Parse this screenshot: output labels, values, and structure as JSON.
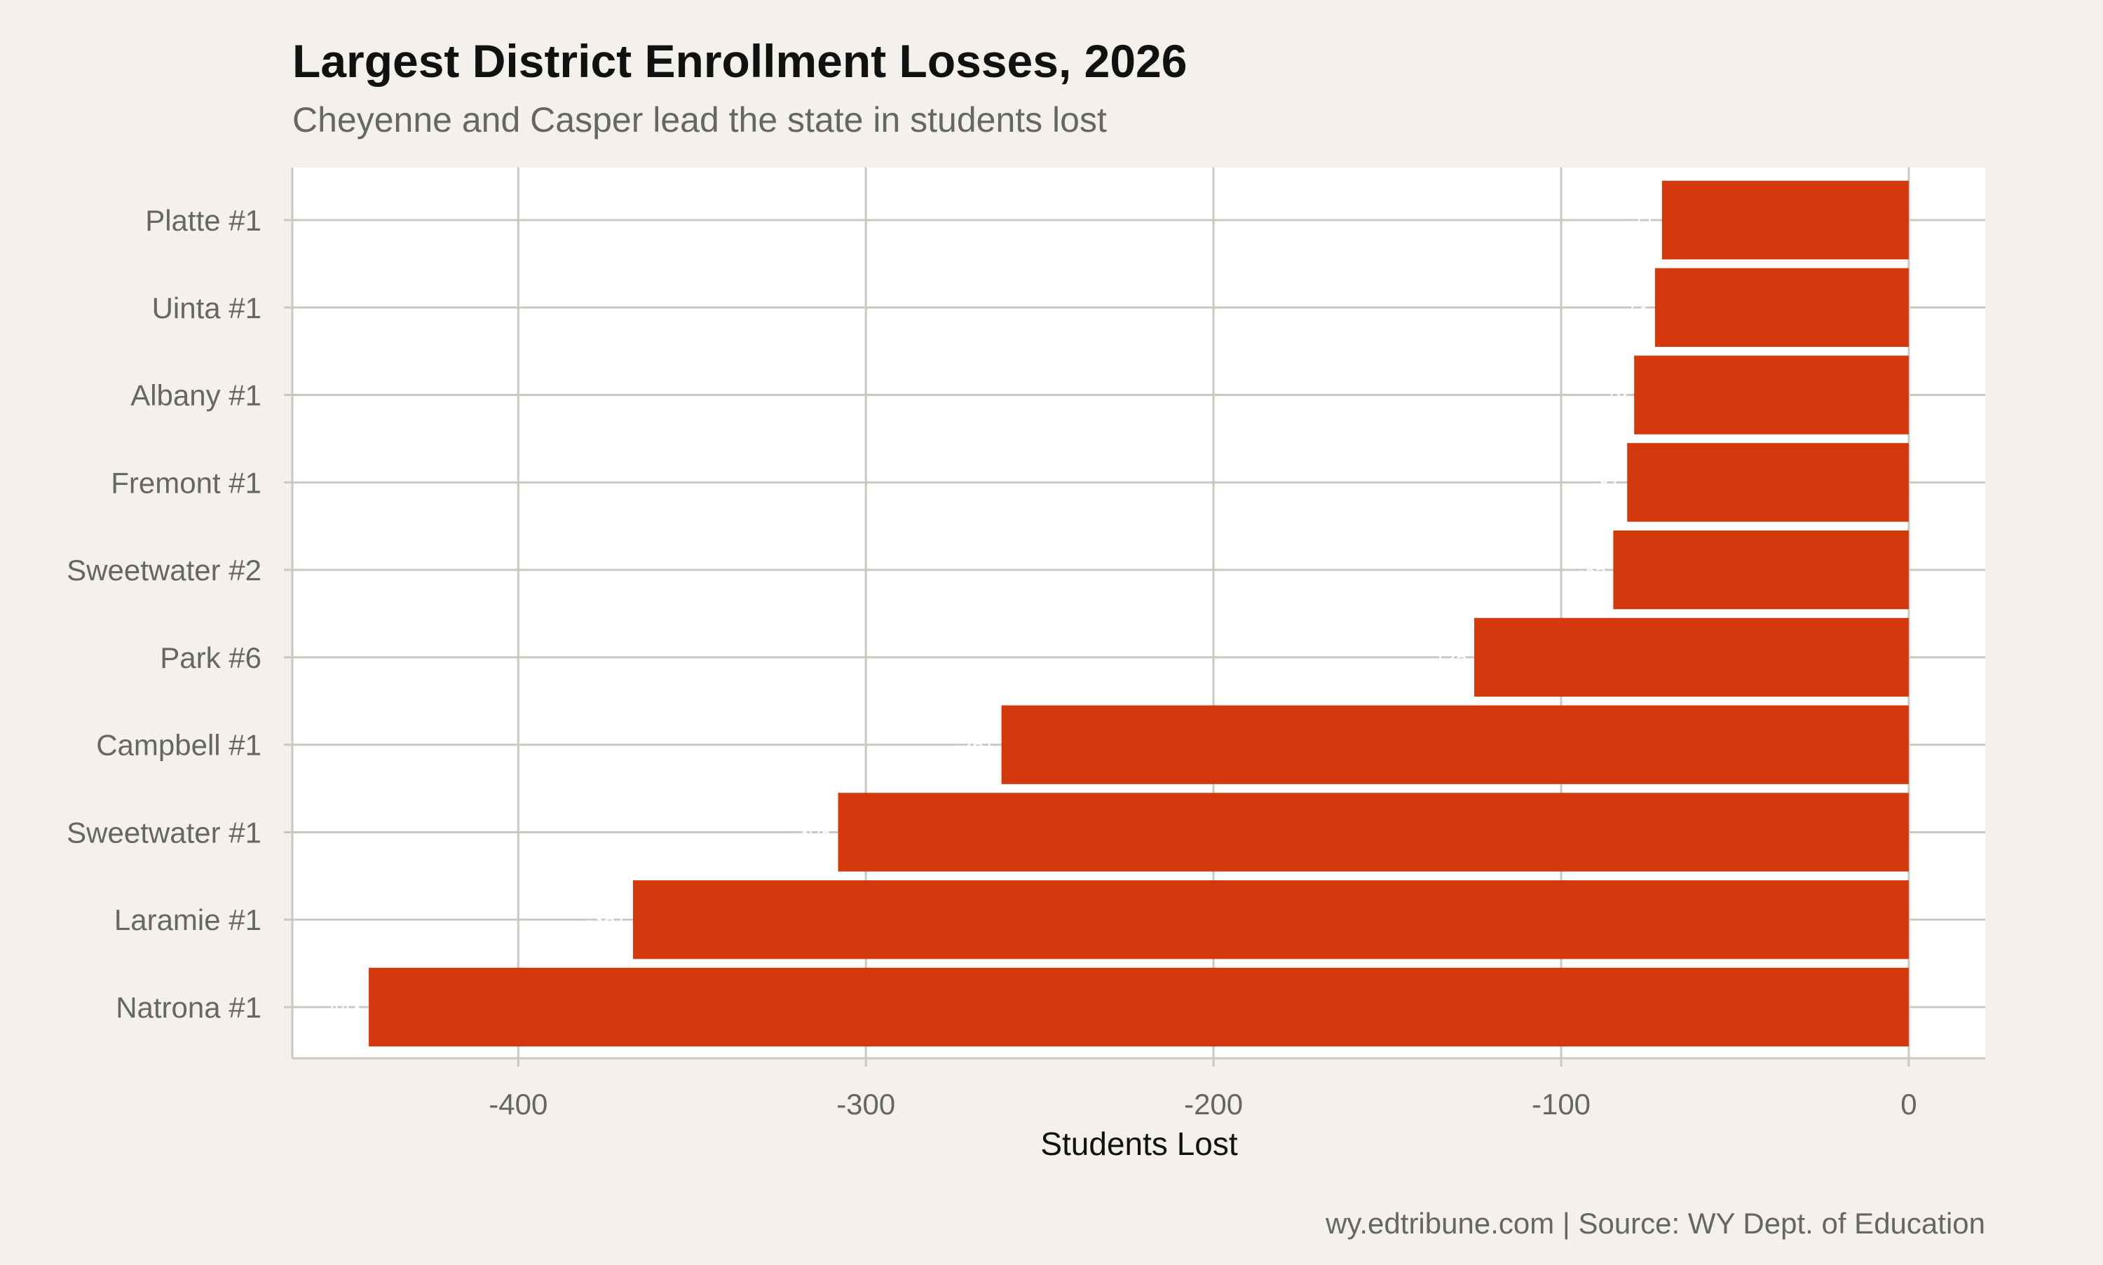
{
  "chart_data": {
    "type": "bar",
    "orientation": "horizontal",
    "title": "Largest District Enrollment Losses, 2026",
    "subtitle": "Cheyenne and Casper lead the state in students lost",
    "xlabel": "Students Lost",
    "ylabel": "",
    "caption": "wy.edtribune.com | Source: WY Dept. of Education",
    "categories": [
      "Platte #1",
      "Uinta #1",
      "Albany #1",
      "Fremont #1",
      "Sweetwater #2",
      "Park #6",
      "Campbell #1",
      "Sweetwater #1",
      "Laramie #1",
      "Natrona #1"
    ],
    "values": [
      -71,
      -73,
      -79,
      -81,
      -85,
      -125,
      -261,
      -308,
      -367,
      -443
    ],
    "xlim": [
      -465,
      22
    ],
    "xticks": [
      -400,
      -300,
      -200,
      -100,
      0
    ],
    "xtick_labels": [
      "-400",
      "-300",
      "-200",
      "-100",
      "0"
    ],
    "grid": true,
    "legend": "none",
    "colors": {
      "bar": "#d4380d",
      "background": "#f4f1ec",
      "panel": "#ffffff",
      "grid": "#ccc8bf",
      "label": "#ffffff"
    }
  }
}
